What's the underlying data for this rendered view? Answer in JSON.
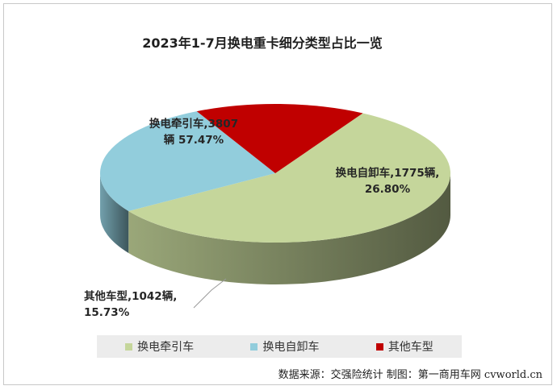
{
  "chart_data": {
    "type": "pie",
    "title": "2023年1-7月换电重卡细分类型占比一览",
    "slices": [
      {
        "name": "换电牵引车",
        "value": 3807,
        "percent": 57.47,
        "color": "#c5d69b",
        "label_lines": [
          "换电牵引车,3807",
          "辆 57.47%"
        ]
      },
      {
        "name": "换电自卸车",
        "value": 1775,
        "percent": 26.8,
        "color": "#92cddc",
        "label_lines": [
          "换电自卸车,1775辆,",
          "26.80%"
        ]
      },
      {
        "name": "其他车型",
        "value": 1042,
        "percent": 15.73,
        "color": "#c00000",
        "label_lines": [
          "其他车型,1042辆,",
          "15.73%"
        ]
      }
    ],
    "legend_position": "bottom",
    "style": "3d-pie"
  },
  "source_text": "数据来源：交强险统计  制图：第一商用车网 cvworld.cn"
}
